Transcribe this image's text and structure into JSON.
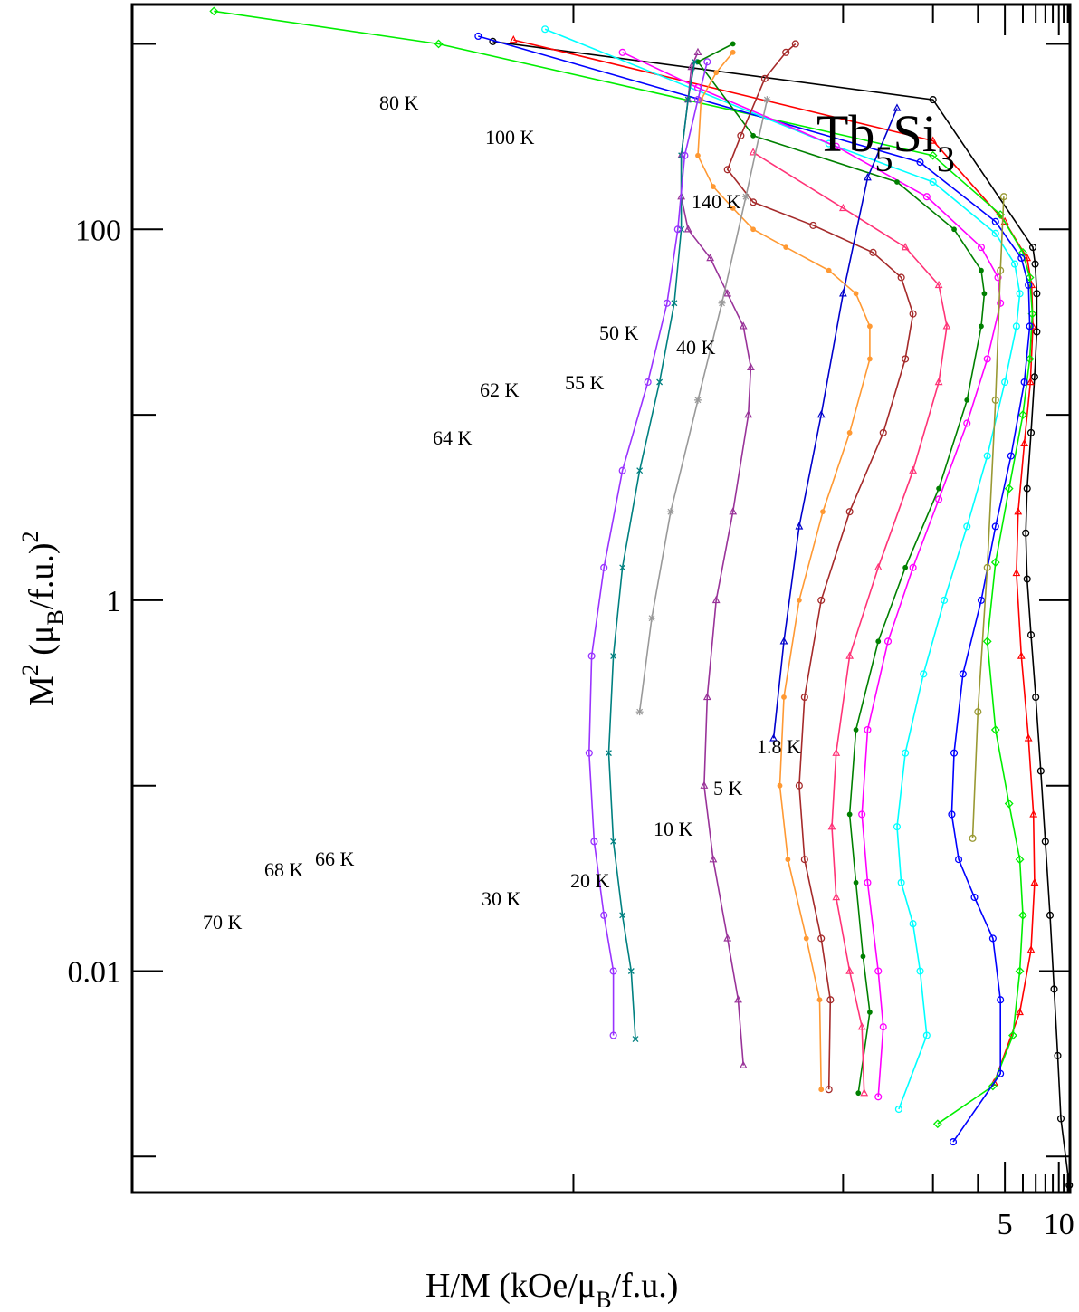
{
  "chart_data": {
    "type": "line",
    "title": "",
    "annotation": {
      "base": "Tb",
      "sub1": "5",
      "mid": "Si",
      "sub2": "3"
    },
    "xlabel": {
      "pre": "H/M (kOe/μ",
      "sub": "B",
      "post": "/f.u.)"
    },
    "ylabel": {
      "pre": "M",
      "sup1": "2",
      "mid": " (μ",
      "sub": "B",
      "post": "/f.u.)",
      "sup2": "2"
    },
    "x_scale": "reciprocal",
    "y_scale": "log",
    "xlim": [
      0.55,
      12.6
    ],
    "ylim": [
      0.00064,
      1630
    ],
    "xticks_major": [
      5,
      10
    ],
    "xtick_labels": [
      "5",
      "10"
    ],
    "yticks_major": [
      0.01,
      1,
      100
    ],
    "ytick_labels": [
      "0.01",
      "1",
      "100"
    ],
    "grid": false,
    "legend": "none",
    "series": [
      {
        "name": "1.8 K",
        "color": "#000000",
        "marker": "circle",
        "points": [
          [
            12.4,
            0.0007
          ],
          [
            10.4,
            0.0016
          ],
          [
            9.8,
            0.0035
          ],
          [
            9.2,
            0.008
          ],
          [
            8.6,
            0.02
          ],
          [
            8.0,
            0.05
          ],
          [
            7.5,
            0.12
          ],
          [
            7.0,
            0.3
          ],
          [
            6.6,
            0.65
          ],
          [
            6.3,
            1.3
          ],
          [
            6.2,
            2.3
          ],
          [
            6.3,
            4
          ],
          [
            6.6,
            8
          ],
          [
            6.9,
            16
          ],
          [
            7.1,
            28
          ],
          [
            7.1,
            45
          ],
          [
            6.95,
            65
          ],
          [
            6.75,
            80
          ],
          [
            3.0,
            500
          ],
          [
            0.87,
            1030
          ]
        ]
      },
      {
        "name": "5 K",
        "color": "#ff0000",
        "marker": "triangle",
        "points": [
          [
            4.55,
            0.0025
          ],
          [
            5.8,
            0.006
          ],
          [
            6.6,
            0.013
          ],
          [
            6.9,
            0.03
          ],
          [
            6.8,
            0.07
          ],
          [
            6.4,
            0.18
          ],
          [
            5.9,
            0.5
          ],
          [
            5.6,
            1.4
          ],
          [
            5.7,
            3
          ],
          [
            6.1,
            7
          ],
          [
            6.55,
            15
          ],
          [
            6.75,
            30
          ],
          [
            6.65,
            50
          ],
          [
            6.3,
            70
          ],
          [
            5.0,
            110
          ],
          [
            3.0,
            300
          ],
          [
            0.9,
            1050
          ]
        ]
      },
      {
        "name": "10 K",
        "color": "#00ee00",
        "marker": "diamond",
        "points": [
          [
            3.08,
            0.0015
          ],
          [
            4.5,
            0.0024
          ],
          [
            5.4,
            0.0045
          ],
          [
            5.8,
            0.01
          ],
          [
            6.0,
            0.02
          ],
          [
            5.8,
            0.04
          ],
          [
            5.2,
            0.08
          ],
          [
            4.6,
            0.2
          ],
          [
            4.3,
            0.6
          ],
          [
            4.6,
            1.6
          ],
          [
            5.2,
            4
          ],
          [
            6.0,
            10
          ],
          [
            6.5,
            20
          ],
          [
            6.7,
            35
          ],
          [
            6.5,
            55
          ],
          [
            6.0,
            75
          ],
          [
            4.8,
            120
          ],
          [
            3.0,
            250
          ],
          [
            0.8,
            1000
          ],
          [
            0.6,
            1500
          ]
        ]
      },
      {
        "name": "20 K",
        "color": "#0000ff",
        "marker": "circle",
        "points": [
          [
            3.38,
            0.0012
          ],
          [
            4.8,
            0.0028
          ],
          [
            4.8,
            0.007
          ],
          [
            4.5,
            0.015
          ],
          [
            3.9,
            0.025
          ],
          [
            3.5,
            0.04
          ],
          [
            3.35,
            0.07
          ],
          [
            3.4,
            0.15
          ],
          [
            3.6,
            0.4
          ],
          [
            4.1,
            1.0
          ],
          [
            4.6,
            2.5
          ],
          [
            5.3,
            6
          ],
          [
            6.1,
            15
          ],
          [
            6.5,
            30
          ],
          [
            6.4,
            50
          ],
          [
            5.9,
            70
          ],
          [
            4.6,
            110
          ],
          [
            2.8,
            230
          ],
          [
            0.85,
            1100
          ]
        ]
      },
      {
        "name": "30 K",
        "color": "#00ffff",
        "marker": "circle",
        "points": [
          [
            2.52,
            0.0018
          ],
          [
            2.9,
            0.0045
          ],
          [
            2.8,
            0.01
          ],
          [
            2.7,
            0.018
          ],
          [
            2.55,
            0.03
          ],
          [
            2.5,
            0.06
          ],
          [
            2.6,
            0.15
          ],
          [
            2.85,
            0.4
          ],
          [
            3.2,
            1.0
          ],
          [
            3.7,
            2.5
          ],
          [
            4.3,
            6
          ],
          [
            5.0,
            15
          ],
          [
            5.6,
            30
          ],
          [
            5.8,
            45
          ],
          [
            5.5,
            65
          ],
          [
            4.6,
            95
          ],
          [
            3.0,
            180
          ],
          [
            1.9,
            290
          ],
          [
            0.95,
            1200
          ]
        ]
      },
      {
        "name": "40 K",
        "color": "#ff00ff",
        "marker": "circle",
        "points": [
          [
            2.3,
            0.0021
          ],
          [
            2.35,
            0.005
          ],
          [
            2.3,
            0.01
          ],
          [
            2.2,
            0.03
          ],
          [
            2.15,
            0.07
          ],
          [
            2.2,
            0.2
          ],
          [
            2.4,
            0.6
          ],
          [
            2.7,
            1.5
          ],
          [
            3.1,
            3.5
          ],
          [
            3.7,
            9
          ],
          [
            4.3,
            20
          ],
          [
            4.8,
            40
          ],
          [
            4.7,
            55
          ],
          [
            4.1,
            80
          ],
          [
            2.9,
            150
          ],
          [
            1.95,
            280
          ],
          [
            1.3,
            580
          ],
          [
            1.1,
            900
          ]
        ]
      },
      {
        "name": "50 K",
        "color": "#008000",
        "marker": "dot",
        "points": [
          [
            2.12,
            0.0022
          ],
          [
            2.22,
            0.006
          ],
          [
            2.16,
            0.012
          ],
          [
            2.1,
            0.03
          ],
          [
            2.05,
            0.07
          ],
          [
            2.1,
            0.2
          ],
          [
            2.3,
            0.6
          ],
          [
            2.6,
            1.5
          ],
          [
            3.1,
            4
          ],
          [
            3.7,
            12
          ],
          [
            4.1,
            30
          ],
          [
            4.2,
            45
          ],
          [
            4.1,
            60
          ],
          [
            3.4,
            100
          ],
          [
            2.5,
            180
          ],
          [
            1.5,
            320
          ],
          [
            1.3,
            800
          ],
          [
            1.42,
            1000
          ]
        ]
      },
      {
        "name": "55 K",
        "color": "#ff3377",
        "marker": "triangle",
        "points": [
          [
            2.17,
            0.0022
          ],
          [
            2.15,
            0.005
          ],
          [
            2.05,
            0.01
          ],
          [
            1.95,
            0.025
          ],
          [
            1.92,
            0.06
          ],
          [
            1.95,
            0.15
          ],
          [
            2.05,
            0.5
          ],
          [
            2.3,
            1.5
          ],
          [
            2.7,
            5
          ],
          [
            3.1,
            15
          ],
          [
            3.25,
            30
          ],
          [
            3.1,
            50
          ],
          [
            2.6,
            80
          ],
          [
            2.0,
            130
          ],
          [
            1.5,
            260
          ]
        ]
      },
      {
        "name": "62 K",
        "color": "#a52a2a",
        "marker": "circle",
        "points": [
          [
            1.9,
            0.0023
          ],
          [
            1.91,
            0.007
          ],
          [
            1.85,
            0.015
          ],
          [
            1.75,
            0.04
          ],
          [
            1.72,
            0.1
          ],
          [
            1.75,
            0.3
          ],
          [
            1.85,
            1.0
          ],
          [
            2.05,
            3
          ],
          [
            2.35,
            8
          ],
          [
            2.6,
            20
          ],
          [
            2.7,
            35
          ],
          [
            2.55,
            55
          ],
          [
            2.25,
            75
          ],
          [
            1.8,
            105
          ],
          [
            1.5,
            140
          ],
          [
            1.4,
            210
          ],
          [
            1.45,
            320
          ],
          [
            1.55,
            650
          ],
          [
            1.65,
            900
          ],
          [
            1.7,
            1000
          ]
        ]
      },
      {
        "name": "64 K",
        "color": "#ff9933",
        "marker": "dot",
        "points": [
          [
            1.85,
            0.0023
          ],
          [
            1.84,
            0.007
          ],
          [
            1.76,
            0.015
          ],
          [
            1.66,
            0.04
          ],
          [
            1.62,
            0.1
          ],
          [
            1.64,
            0.3
          ],
          [
            1.72,
            1.0
          ],
          [
            1.86,
            3
          ],
          [
            2.05,
            8
          ],
          [
            2.22,
            20
          ],
          [
            2.22,
            30
          ],
          [
            2.1,
            45
          ],
          [
            1.9,
            60
          ],
          [
            1.65,
            80
          ],
          [
            1.5,
            100
          ],
          [
            1.42,
            130
          ],
          [
            1.35,
            170
          ],
          [
            1.3,
            250
          ],
          [
            1.31,
            500
          ],
          [
            1.36,
            700
          ],
          [
            1.42,
            900
          ]
        ]
      },
      {
        "name": "66 K",
        "color": "#993399",
        "marker": "triangle",
        "points": [
          [
            1.46,
            0.0031
          ],
          [
            1.44,
            0.007
          ],
          [
            1.4,
            0.015
          ],
          [
            1.35,
            0.04
          ],
          [
            1.32,
            0.1
          ],
          [
            1.33,
            0.3
          ],
          [
            1.36,
            1.0
          ],
          [
            1.42,
            3
          ],
          [
            1.48,
            10
          ],
          [
            1.49,
            18
          ],
          [
            1.46,
            30
          ],
          [
            1.4,
            45
          ],
          [
            1.34,
            70
          ],
          [
            1.27,
            100
          ],
          [
            1.25,
            150
          ],
          [
            1.25,
            250
          ],
          [
            1.27,
            500
          ],
          [
            1.28,
            750
          ],
          [
            1.3,
            900
          ]
        ]
      },
      {
        "name": "68 K",
        "color": "#008080",
        "marker": "cross",
        "points": [
          [
            1.13,
            0.0043
          ],
          [
            1.12,
            0.01
          ],
          [
            1.1,
            0.02
          ],
          [
            1.08,
            0.05
          ],
          [
            1.07,
            0.15
          ],
          [
            1.08,
            0.5
          ],
          [
            1.1,
            1.5
          ],
          [
            1.14,
            5
          ],
          [
            1.19,
            15
          ],
          [
            1.23,
            40
          ],
          [
            1.25,
            100
          ],
          [
            1.25,
            250
          ],
          [
            1.27,
            500
          ],
          [
            1.29,
            800
          ]
        ]
      },
      {
        "name": "70 K",
        "color": "#9933ff",
        "marker": "circle",
        "points": [
          [
            1.08,
            0.0045
          ],
          [
            1.08,
            0.01
          ],
          [
            1.06,
            0.02
          ],
          [
            1.04,
            0.05
          ],
          [
            1.03,
            0.15
          ],
          [
            1.035,
            0.5
          ],
          [
            1.06,
            1.5
          ],
          [
            1.1,
            5
          ],
          [
            1.16,
            15
          ],
          [
            1.21,
            40
          ],
          [
            1.24,
            100
          ],
          [
            1.26,
            250
          ],
          [
            1.3,
            500
          ],
          [
            1.33,
            800
          ]
        ]
      },
      {
        "name": "80 K",
        "color": "#999999",
        "marker": "star",
        "points": [
          [
            1.14,
            0.25
          ],
          [
            1.17,
            0.8
          ],
          [
            1.22,
            3
          ],
          [
            1.3,
            12
          ],
          [
            1.38,
            40
          ],
          [
            1.47,
            150
          ],
          [
            1.56,
            500
          ]
        ]
      },
      {
        "name": "100 K",
        "color": "#0000cc",
        "marker": "triangle",
        "points": [
          [
            1.59,
            0.18
          ],
          [
            1.64,
            0.6
          ],
          [
            1.72,
            2.5
          ],
          [
            1.85,
            10
          ],
          [
            2.0,
            45
          ],
          [
            2.2,
            190
          ],
          [
            2.5,
            450
          ]
        ]
      },
      {
        "name": "140 K",
        "color": "#999933",
        "marker": "circle",
        "points": [
          [
            3.85,
            0.052
          ],
          [
            4.0,
            0.25
          ],
          [
            4.3,
            1.5
          ],
          [
            4.6,
            12
          ],
          [
            4.8,
            60
          ],
          [
            4.95,
            150
          ]
        ]
      }
    ]
  }
}
